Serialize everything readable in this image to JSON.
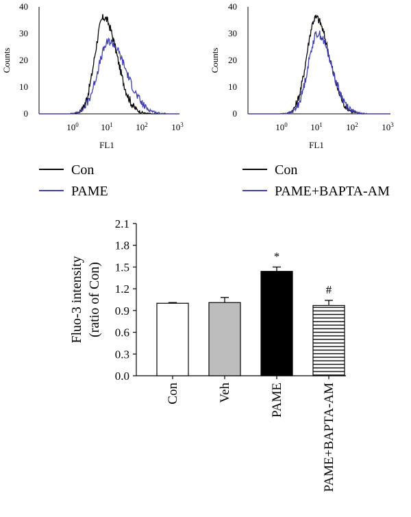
{
  "chart_data": [
    {
      "type": "line",
      "panel": "histogram-left",
      "xlabel": "FL1",
      "ylabel": "Counts",
      "xscale": "log",
      "xlim": [
        0.1,
        1000
      ],
      "ylim": [
        0,
        40
      ],
      "yticks": [
        "0",
        "10",
        "20",
        "30",
        "40"
      ],
      "xticks": [
        {
          "base": "10",
          "exp": "0",
          "value": 1
        },
        {
          "base": "10",
          "exp": "1",
          "value": 10
        },
        {
          "base": "10",
          "exp": "2",
          "value": 100
        },
        {
          "base": "10",
          "exp": "3",
          "value": 1000
        }
      ],
      "series": [
        {
          "name": "Con",
          "color": "#000000",
          "peak_x": 7,
          "peak_y": 36,
          "width": 0.3,
          "start": 0.8,
          "end": 150
        },
        {
          "name": "PAME",
          "color": "#3f3fae",
          "peak_x": 10,
          "peak_y": 27,
          "width": 0.38,
          "start": 1.0,
          "end": 400
        }
      ],
      "legend_position": "below"
    },
    {
      "type": "line",
      "panel": "histogram-right",
      "xlabel": "FL1",
      "ylabel": "Counts",
      "xscale": "log",
      "xlim": [
        0.1,
        1000
      ],
      "ylim": [
        0,
        40
      ],
      "yticks": [
        "0",
        "10",
        "20",
        "30",
        "40"
      ],
      "xticks": [
        {
          "base": "10",
          "exp": "0",
          "value": 1
        },
        {
          "base": "10",
          "exp": "1",
          "value": 10
        },
        {
          "base": "10",
          "exp": "2",
          "value": 100
        },
        {
          "base": "10",
          "exp": "3",
          "value": 1000
        }
      ],
      "series": [
        {
          "name": "Con",
          "color": "#000000",
          "peak_x": 8,
          "peak_y": 36,
          "width": 0.3,
          "start": 0.8,
          "end": 150
        },
        {
          "name": "PAME+BAPTA-AM",
          "color": "#3f3fae",
          "peak_x": 9,
          "peak_y": 30,
          "width": 0.31,
          "start": 0.8,
          "end": 250
        }
      ],
      "legend_position": "below"
    },
    {
      "type": "bar",
      "ylabel_line1": "Fluo-3 intensity",
      "ylabel_line2": "(ratio of Con)",
      "ylim": [
        0,
        2.1
      ],
      "yticks": [
        "0.0",
        "0.3",
        "0.6",
        "0.9",
        "1.2",
        "1.5",
        "1.8",
        "2.1"
      ],
      "categories": [
        "Con",
        "Veh",
        "PAME",
        "PAME+BAPTA-AM"
      ],
      "values": [
        1.0,
        1.01,
        1.44,
        0.97
      ],
      "errors": [
        0.01,
        0.07,
        0.06,
        0.07
      ],
      "fills": [
        "#ffffff",
        "#bdbdbd",
        "#000000",
        "hatch"
      ],
      "annotations": [
        "",
        "",
        "*",
        "#"
      ]
    }
  ]
}
